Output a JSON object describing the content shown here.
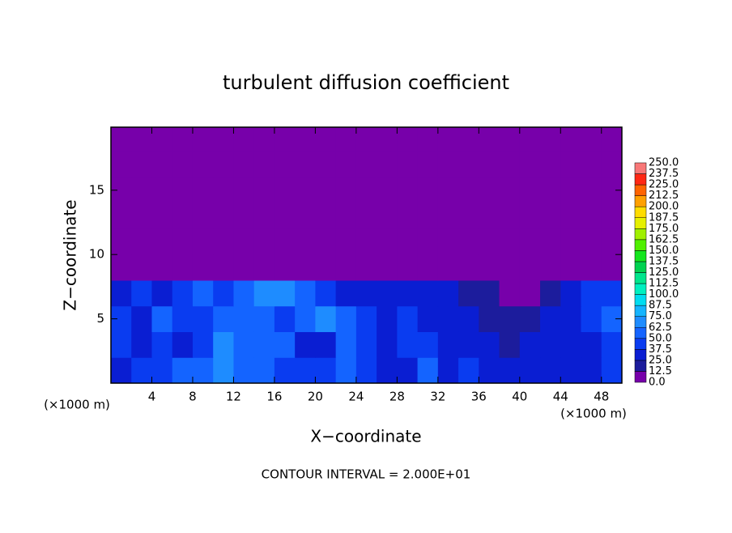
{
  "chart_data": {
    "type": "contourf",
    "title": "turbulent diffusion coefficient",
    "xlabel": "X−coordinate",
    "ylabel": "Z−coordinate",
    "x_unit_label": "(×1000 m)",
    "annotation": "CONTOUR INTERVAL = 2.000E+01",
    "xlim": [
      0,
      50
    ],
    "ylim": [
      0,
      19.9
    ],
    "xticks": [
      4,
      8,
      12,
      16,
      20,
      24,
      28,
      32,
      36,
      40,
      44,
      48
    ],
    "yticks": [
      5,
      10,
      15
    ],
    "x": [
      1,
      3,
      5,
      7,
      9,
      11,
      13,
      15,
      17,
      19,
      21,
      23,
      25,
      27,
      29,
      31,
      33,
      35,
      37,
      39,
      41,
      43,
      45,
      47,
      49
    ],
    "z": [
      1,
      3,
      5,
      7,
      9,
      11,
      13,
      15,
      17,
      19
    ],
    "values": [
      [
        35,
        40,
        45,
        55,
        60,
        70,
        60,
        50,
        45,
        40,
        40,
        55,
        40,
        35,
        35,
        50,
        35,
        40,
        30,
        25,
        30,
        35,
        25,
        30,
        45
      ],
      [
        40,
        35,
        40,
        30,
        40,
        65,
        55,
        60,
        50,
        35,
        35,
        60,
        45,
        30,
        45,
        40,
        35,
        30,
        25,
        20,
        30,
        35,
        30,
        35,
        45
      ],
      [
        40,
        35,
        50,
        45,
        45,
        55,
        60,
        55,
        40,
        60,
        70,
        50,
        40,
        35,
        40,
        35,
        30,
        25,
        20,
        15,
        20,
        30,
        35,
        40,
        50
      ],
      [
        30,
        40,
        35,
        45,
        55,
        40,
        60,
        65,
        65,
        60,
        40,
        25,
        25,
        30,
        30,
        25,
        25,
        20,
        15,
        8,
        10,
        15,
        30,
        40,
        45
      ],
      [
        10,
        8,
        3,
        2,
        2,
        2,
        2,
        5,
        2,
        0,
        0,
        0,
        0,
        0,
        0,
        0,
        0,
        0,
        0,
        0,
        0,
        0,
        0,
        3,
        10
      ],
      [
        0,
        0,
        0,
        0,
        0,
        0,
        0,
        0,
        0,
        0,
        0,
        0,
        0,
        0,
        0,
        0,
        0,
        0,
        0,
        0,
        0,
        0,
        0,
        0,
        0
      ],
      [
        0,
        0,
        0,
        0,
        0,
        0,
        0,
        0,
        0,
        0,
        0,
        0,
        0,
        0,
        0,
        0,
        0,
        0,
        0,
        0,
        0,
        0,
        0,
        0,
        0
      ],
      [
        0,
        0,
        0,
        0,
        0,
        0,
        0,
        0,
        0,
        0,
        0,
        0,
        0,
        0,
        0,
        0,
        0,
        0,
        0,
        0,
        0,
        0,
        0,
        0,
        0
      ],
      [
        0,
        0,
        0,
        0,
        0,
        0,
        0,
        0,
        0,
        0,
        0,
        0,
        0,
        0,
        0,
        0,
        0,
        0,
        0,
        0,
        0,
        0,
        0,
        0,
        0
      ],
      [
        0,
        0,
        0,
        0,
        0,
        0,
        0,
        0,
        0,
        0,
        0,
        0,
        0,
        0,
        0,
        0,
        0,
        0,
        0,
        0,
        0,
        0,
        0,
        0,
        0
      ]
    ],
    "colorbar": {
      "levels": [
        {
          "value": 0,
          "label": "0.0"
        },
        {
          "value": 12.5,
          "label": "12.5"
        },
        {
          "value": 25,
          "label": "25.0"
        },
        {
          "value": 37.5,
          "label": "37.5"
        },
        {
          "value": 50,
          "label": "50.0"
        },
        {
          "value": 62.5,
          "label": "62.5"
        },
        {
          "value": 75,
          "label": "75.0"
        },
        {
          "value": 87.5,
          "label": "87.5"
        },
        {
          "value": 100,
          "label": "100.0"
        },
        {
          "value": 112.5,
          "label": "112.5"
        },
        {
          "value": 125,
          "label": "125.0"
        },
        {
          "value": 137.5,
          "label": "137.5"
        },
        {
          "value": 150,
          "label": "150.0"
        },
        {
          "value": 162.5,
          "label": "162.5"
        },
        {
          "value": 175,
          "label": "175.0"
        },
        {
          "value": 187.5,
          "label": "187.5"
        },
        {
          "value": 200,
          "label": "200.0"
        },
        {
          "value": 212.5,
          "label": "212.5"
        },
        {
          "value": 225,
          "label": "225.0"
        },
        {
          "value": 237.5,
          "label": "237.5"
        },
        {
          "value": 250,
          "label": "250.0"
        }
      ],
      "colors": [
        "#7700aa",
        "#1c1c9c",
        "#0a1ed2",
        "#0a3cf0",
        "#1464ff",
        "#1e8cff",
        "#14b4ff",
        "#00dcf0",
        "#00f0c0",
        "#00e68c",
        "#00d250",
        "#14e61e",
        "#50f000",
        "#a0f000",
        "#e6f000",
        "#ffdc00",
        "#ffa000",
        "#ff6400",
        "#ff2814",
        "#f87878"
      ]
    }
  }
}
